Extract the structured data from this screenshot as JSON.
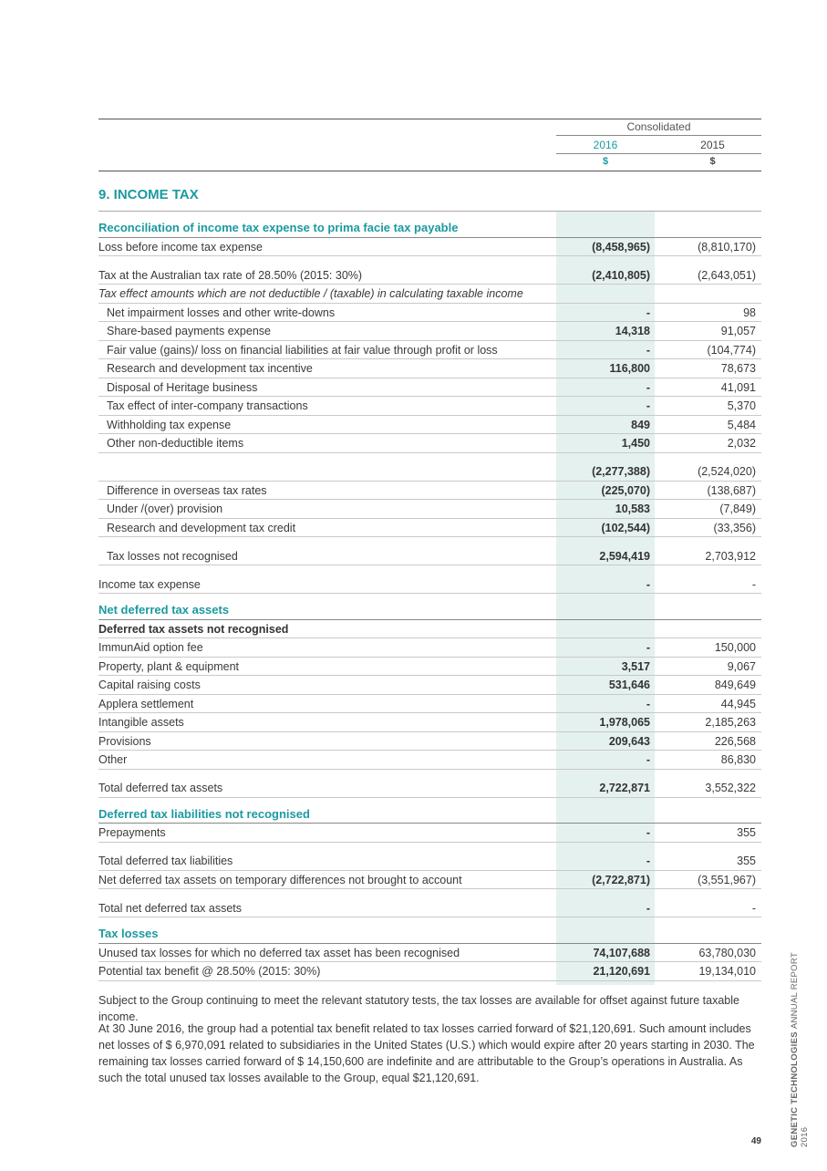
{
  "header": {
    "group": "Consolidated",
    "years": [
      "2016",
      "2015"
    ],
    "units": [
      "$",
      "$"
    ]
  },
  "title": "9. INCOME TAX",
  "rows": [
    [
      "Reconciliation of income tax expense to prima facie tax payable"
    ],
    [
      "Loss before income tax expense",
      "(8,458,965)",
      "(8,810,170)"
    ],
    [
      "Tax at the Australian tax rate of 28.50% (2015: 30%)",
      "(2,410,805)",
      "(2,643,051)"
    ],
    [
      "Tax effect amounts which are not deductible / (taxable) in calculating taxable income"
    ],
    [
      "Net impairment losses and other write-downs",
      "-",
      "98"
    ],
    [
      "Share-based payments expense",
      "14,318",
      "91,057"
    ],
    [
      "Fair value (gains)/ loss on financial liabilities at fair value through profit or loss",
      "-",
      "(104,774)"
    ],
    [
      "Research and development tax incentive",
      "116,800",
      "78,673"
    ],
    [
      "Disposal of Heritage business",
      "-",
      "41,091"
    ],
    [
      "Tax effect of inter-company transactions",
      "-",
      "5,370"
    ],
    [
      "Withholding tax expense",
      "849",
      "5,484"
    ],
    [
      "Other non-deductible items",
      "1,450",
      "2,032"
    ],
    [
      null,
      "(2,277,388)",
      "(2,524,020)"
    ],
    [
      "Difference in overseas tax rates",
      "(225,070)",
      "(138,687)"
    ],
    [
      "Under /(over) provision",
      "10,583",
      "(7,849)"
    ],
    [
      "Research and development tax credit",
      "(102,544)",
      "(33,356)"
    ],
    [
      "Tax losses not recognised",
      "2,594,419",
      "2,703,912"
    ],
    [
      "Income tax expense",
      "-",
      "-"
    ],
    [
      "Net deferred tax assets"
    ],
    [
      "Deferred tax assets not recognised"
    ],
    [
      "ImmunAid option fee",
      "-",
      "150,000"
    ],
    [
      "Property, plant & equipment",
      "3,517",
      "9,067"
    ],
    [
      "Capital raising costs",
      "531,646",
      "849,649"
    ],
    [
      "Applera settlement",
      "-",
      "44,945"
    ],
    [
      "Intangible assets",
      "1,978,065",
      "2,185,263"
    ],
    [
      "Provisions",
      "209,643",
      "226,568"
    ],
    [
      "Other",
      "-",
      "86,830"
    ],
    [
      "Total deferred tax assets",
      "2,722,871",
      "3,552,322"
    ],
    [
      "Deferred tax liabilities not recognised"
    ],
    [
      "Prepayments",
      "-",
      "355"
    ],
    [
      "Total deferred tax liabilities",
      "-",
      "355"
    ],
    [
      "Net deferred tax assets on temporary differences not brought to account",
      "(2,722,871)",
      "(3,551,967)"
    ],
    [
      "Total net deferred tax assets",
      "-",
      "-"
    ],
    [
      "Tax losses"
    ],
    [
      "Unused tax losses for which no deferred tax asset has been recognised",
      "74,107,688",
      "63,780,030"
    ],
    [
      "Potential tax benefit @ 28.50% (2015: 30%)",
      "21,120,691",
      "19,134,010"
    ]
  ],
  "notes": [
    "Subject to the Group continuing to meet the relevant statutory tests, the tax losses are available for offset against future taxable income.",
    "At 30 June 2016, the group had a potential tax benefit related to tax losses carried forward of $21,120,691. Such amount includes net losses of $ 6,970,091 related to subsidiaries in the United States (U.S.) which would expire after 20 years starting in 2030. The remaining tax losses carried forward of $ 14,150,600 are indefinite and are attributable to the Group’s operations in Australia. As such the total unused tax losses available to the Group, equal $21,120,691."
  ],
  "footer": {
    "company": "GENETIC TECHNOLOGIES",
    "report": "ANNUAL REPORT 2016",
    "page": "49"
  }
}
